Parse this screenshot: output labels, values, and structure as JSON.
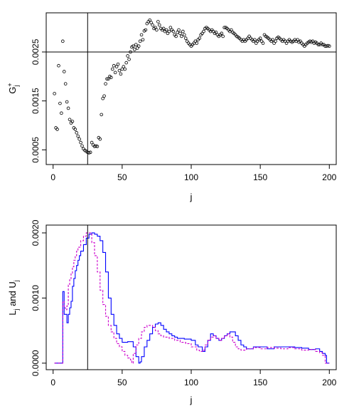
{
  "chart_data": [
    {
      "type": "scatter",
      "xlabel": "j",
      "ylabel": "G",
      "ylabel_sup": "+",
      "ylabel_sub": "j",
      "xlim": [
        -5,
        205
      ],
      "ylim": [
        0.0002,
        0.0033
      ],
      "xticks": [
        0,
        50,
        100,
        150,
        200
      ],
      "xtick_labels": [
        "0",
        "50",
        "100",
        "150",
        "200"
      ],
      "yticks": [
        0.0005,
        0.0015,
        0.0025
      ],
      "ytick_labels": [
        "0.0005",
        "0.0015",
        "0.0025"
      ],
      "vline_x": 25,
      "hline_y": 0.0025,
      "points": [
        [
          1,
          0.00165
        ],
        [
          2,
          0.00095
        ],
        [
          3,
          0.00092
        ],
        [
          4,
          0.00222
        ],
        [
          5,
          0.00145
        ],
        [
          6,
          0.00125
        ],
        [
          7,
          0.00272
        ],
        [
          8,
          0.0021
        ],
        [
          9,
          0.00185
        ],
        [
          10,
          0.00148
        ],
        [
          11,
          0.00135
        ],
        [
          12,
          0.00112
        ],
        [
          13,
          0.00105
        ],
        [
          14,
          0.00108
        ],
        [
          15,
          0.00095
        ],
        [
          16,
          0.00092
        ],
        [
          17,
          0.00085
        ],
        [
          18,
          0.00078
        ],
        [
          19,
          0.00072
        ],
        [
          20,
          0.00065
        ],
        [
          21,
          0.00058
        ],
        [
          22,
          0.00052
        ],
        [
          23,
          0.00049
        ],
        [
          24,
          0.00047
        ],
        [
          25,
          0.00045
        ],
        [
          26,
          0.00044
        ],
        [
          27,
          0.00045
        ],
        [
          28,
          0.00065
        ],
        [
          29,
          0.0006
        ],
        [
          30,
          0.00057
        ],
        [
          31,
          0.00058
        ],
        [
          32,
          0.00057
        ],
        [
          33,
          0.00075
        ],
        [
          34,
          0.00072
        ],
        [
          35,
          0.00122
        ],
        [
          36,
          0.00155
        ],
        [
          37,
          0.0016
        ],
        [
          38,
          0.00185
        ],
        [
          39,
          0.00195
        ],
        [
          40,
          0.00195
        ],
        [
          41,
          0.002
        ],
        [
          42,
          0.00198
        ],
        [
          43,
          0.00215
        ],
        [
          44,
          0.00222
        ],
        [
          45,
          0.00208
        ],
        [
          46,
          0.0022
        ],
        [
          47,
          0.00225
        ],
        [
          48,
          0.00212
        ],
        [
          49,
          0.00205
        ],
        [
          50,
          0.00215
        ],
        [
          51,
          0.0022
        ],
        [
          52,
          0.00215
        ],
        [
          53,
          0.00228
        ],
        [
          54,
          0.00242
        ],
        [
          55,
          0.00235
        ],
        [
          56,
          0.0025
        ],
        [
          57,
          0.0026
        ],
        [
          58,
          0.00262
        ],
        [
          59,
          0.00255
        ],
        [
          60,
          0.00265
        ],
        [
          61,
          0.00258
        ],
        [
          62,
          0.00262
        ],
        [
          63,
          0.00272
        ],
        [
          64,
          0.00285
        ],
        [
          65,
          0.00275
        ],
        [
          66,
          0.00293
        ],
        [
          67,
          0.00295
        ],
        [
          68,
          0.00308
        ],
        [
          69,
          0.00312
        ],
        [
          70,
          0.00315
        ],
        [
          71,
          0.0031
        ],
        [
          72,
          0.00305
        ],
        [
          73,
          0.00298
        ],
        [
          74,
          0.003
        ],
        [
          75,
          0.00295
        ],
        [
          76,
          0.00312
        ],
        [
          77,
          0.00305
        ],
        [
          78,
          0.00298
        ],
        [
          79,
          0.00295
        ],
        [
          80,
          0.00298
        ],
        [
          81,
          0.00292
        ],
        [
          82,
          0.00295
        ],
        [
          83,
          0.00288
        ],
        [
          84,
          0.00292
        ],
        [
          85,
          0.003
        ],
        [
          86,
          0.00295
        ],
        [
          87,
          0.00292
        ],
        [
          88,
          0.00285
        ],
        [
          89,
          0.00282
        ],
        [
          90,
          0.0029
        ],
        [
          91,
          0.00295
        ],
        [
          92,
          0.00288
        ],
        [
          93,
          0.00282
        ],
        [
          94,
          0.00292
        ],
        [
          95,
          0.00285
        ],
        [
          96,
          0.00278
        ],
        [
          97,
          0.00272
        ],
        [
          98,
          0.00268
        ],
        [
          99,
          0.00265
        ],
        [
          100,
          0.00262
        ],
        [
          101,
          0.00265
        ],
        [
          102,
          0.00268
        ],
        [
          103,
          0.00272
        ],
        [
          104,
          0.00268
        ],
        [
          105,
          0.00275
        ],
        [
          106,
          0.00278
        ],
        [
          107,
          0.00285
        ],
        [
          108,
          0.00288
        ],
        [
          109,
          0.00292
        ],
        [
          110,
          0.00298
        ],
        [
          111,
          0.003
        ],
        [
          112,
          0.00298
        ],
        [
          113,
          0.00295
        ],
        [
          114,
          0.00292
        ],
        [
          115,
          0.00295
        ],
        [
          116,
          0.00292
        ],
        [
          117,
          0.00288
        ],
        [
          118,
          0.0029
        ],
        [
          119,
          0.00285
        ],
        [
          120,
          0.00282
        ],
        [
          121,
          0.00285
        ],
        [
          122,
          0.00288
        ],
        [
          123,
          0.00282
        ],
        [
          124,
          0.003
        ],
        [
          125,
          0.003
        ],
        [
          126,
          0.00298
        ],
        [
          127,
          0.00295
        ],
        [
          128,
          0.00292
        ],
        [
          129,
          0.00295
        ],
        [
          130,
          0.0029
        ],
        [
          131,
          0.00288
        ],
        [
          132,
          0.00285
        ],
        [
          133,
          0.00282
        ],
        [
          134,
          0.0028
        ],
        [
          135,
          0.00278
        ],
        [
          136,
          0.00275
        ],
        [
          137,
          0.00272
        ],
        [
          138,
          0.00275
        ],
        [
          139,
          0.00272
        ],
        [
          140,
          0.00275
        ],
        [
          141,
          0.00278
        ],
        [
          142,
          0.00282
        ],
        [
          143,
          0.00278
        ],
        [
          144,
          0.00275
        ],
        [
          145,
          0.00272
        ],
        [
          146,
          0.00275
        ],
        [
          147,
          0.00268
        ],
        [
          148,
          0.00272
        ],
        [
          149,
          0.00275
        ],
        [
          150,
          0.00278
        ],
        [
          151,
          0.00272
        ],
        [
          152,
          0.00268
        ],
        [
          153,
          0.00285
        ],
        [
          154,
          0.00282
        ],
        [
          155,
          0.0028
        ],
        [
          156,
          0.00278
        ],
        [
          157,
          0.00275
        ],
        [
          158,
          0.00272
        ],
        [
          159,
          0.00275
        ],
        [
          160,
          0.00268
        ],
        [
          161,
          0.00272
        ],
        [
          162,
          0.00278
        ],
        [
          163,
          0.0028
        ],
        [
          164,
          0.00278
        ],
        [
          165,
          0.00275
        ],
        [
          166,
          0.00272
        ],
        [
          167,
          0.00275
        ],
        [
          168,
          0.00272
        ],
        [
          169,
          0.00268
        ],
        [
          170,
          0.00272
        ],
        [
          171,
          0.00275
        ],
        [
          172,
          0.00272
        ],
        [
          173,
          0.0027
        ],
        [
          174,
          0.00272
        ],
        [
          175,
          0.00275
        ],
        [
          176,
          0.00272
        ],
        [
          177,
          0.00275
        ],
        [
          178,
          0.0027
        ],
        [
          179,
          0.00272
        ],
        [
          180,
          0.00268
        ],
        [
          181,
          0.00265
        ],
        [
          182,
          0.00262
        ],
        [
          183,
          0.00265
        ],
        [
          184,
          0.00268
        ],
        [
          185,
          0.0027
        ],
        [
          186,
          0.00272
        ],
        [
          187,
          0.0027
        ],
        [
          188,
          0.00272
        ],
        [
          189,
          0.00268
        ],
        [
          190,
          0.0027
        ],
        [
          191,
          0.00268
        ],
        [
          192,
          0.00265
        ],
        [
          193,
          0.00265
        ],
        [
          194,
          0.00268
        ],
        [
          195,
          0.00265
        ],
        [
          196,
          0.00265
        ],
        [
          197,
          0.00262
        ],
        [
          198,
          0.00262
        ],
        [
          199,
          0.00263
        ],
        [
          200,
          0.00262
        ]
      ]
    },
    {
      "type": "line",
      "xlabel": "j",
      "ylabel": "L",
      "ylabel_sub_1": "j",
      "ylabel_mid": " and U",
      "ylabel_sub_2": "j",
      "xlim": [
        -5,
        205
      ],
      "ylim": [
        -0.0001,
        0.00212
      ],
      "xticks": [
        0,
        50,
        100,
        150,
        200
      ],
      "xtick_labels": [
        "0",
        "50",
        "100",
        "150",
        "200"
      ],
      "yticks": [
        0.0,
        0.001,
        0.002
      ],
      "ytick_labels": [
        "0.0000",
        "0.0010",
        "0.0020"
      ],
      "vline_x": 25,
      "series": [
        {
          "color": "#0000ff",
          "style": "step-solid",
          "x": [
            1,
            7,
            8,
            9,
            10,
            11,
            12,
            13,
            14,
            15,
            16,
            17,
            18,
            19,
            20,
            22,
            24,
            26,
            28,
            30,
            32,
            34,
            36,
            38,
            40,
            42,
            44,
            46,
            48,
            50,
            52,
            54,
            56,
            58,
            60,
            62,
            63,
            64,
            66,
            68,
            70,
            72,
            74,
            76,
            78,
            80,
            82,
            84,
            86,
            88,
            90,
            95,
            100,
            103,
            105,
            108,
            110,
            112,
            114,
            116,
            118,
            120,
            122,
            124,
            126,
            128,
            130,
            132,
            134,
            136,
            138,
            140,
            142,
            145,
            150,
            155,
            160,
            165,
            170,
            175,
            180,
            185,
            190,
            193,
            195,
            197,
            198,
            200
          ],
          "y": [
            0.0,
            0.0011,
            0.00075,
            0.00075,
            0.00062,
            0.00075,
            0.00085,
            0.00095,
            0.00118,
            0.0013,
            0.00142,
            0.0015,
            0.00158,
            0.00165,
            0.00172,
            0.00182,
            0.00192,
            0.00198,
            0.002,
            0.00198,
            0.00195,
            0.00188,
            0.0017,
            0.0014,
            0.001,
            0.00075,
            0.00058,
            0.00045,
            0.00038,
            0.00032,
            0.00032,
            0.00033,
            0.00033,
            0.00025,
            0.0001,
            0.0,
            2e-05,
            0.0001,
            0.00025,
            0.00035,
            0.00045,
            0.00055,
            0.0006,
            0.00062,
            0.00058,
            0.00052,
            0.00048,
            0.00045,
            0.00042,
            0.0004,
            0.00038,
            0.00037,
            0.00035,
            0.00028,
            0.00025,
            0.00018,
            0.00025,
            0.00035,
            0.00045,
            0.00042,
            0.00038,
            0.00035,
            0.00038,
            0.00042,
            0.00045,
            0.00048,
            0.00048,
            0.00042,
            0.00035,
            0.00028,
            0.00025,
            0.00022,
            0.00022,
            0.00025,
            0.00025,
            0.00022,
            0.00025,
            0.00025,
            0.00025,
            0.00024,
            0.00023,
            0.00021,
            0.00022,
            0.00018,
            0.00015,
            0.00012,
            0.0,
            0.0
          ]
        },
        {
          "color": "#cc00cc",
          "style": "step-dashed",
          "x": [
            1,
            7,
            8,
            9,
            10,
            11,
            12,
            13,
            14,
            15,
            16,
            17,
            18,
            20,
            22,
            24,
            26,
            28,
            30,
            32,
            34,
            36,
            38,
            40,
            42,
            44,
            46,
            48,
            50,
            52,
            54,
            56,
            57,
            58,
            60,
            62,
            64,
            66,
            68,
            70,
            72,
            74,
            76,
            78,
            80,
            84,
            88,
            92,
            96,
            100,
            104,
            106,
            108,
            110,
            112,
            114,
            116,
            118,
            120,
            122,
            124,
            126,
            128,
            130,
            132,
            134,
            136,
            138,
            140,
            145,
            150,
            155,
            160,
            165,
            170,
            175,
            180,
            185,
            190,
            193,
            195,
            197,
            198,
            200
          ],
          "y": [
            0.0,
            0.00095,
            0.00085,
            0.00082,
            0.00088,
            0.0012,
            0.00128,
            0.00138,
            0.00148,
            0.00158,
            0.00165,
            0.00172,
            0.00178,
            0.00188,
            0.00195,
            0.002,
            0.002,
            0.00185,
            0.00165,
            0.0014,
            0.00112,
            0.0009,
            0.00072,
            0.00058,
            0.00048,
            0.00038,
            0.0003,
            0.00025,
            0.00018,
            0.00012,
            8e-05,
            5e-05,
            0.0,
            0.00015,
            0.00028,
            0.00038,
            0.00048,
            0.00055,
            0.00058,
            0.00058,
            0.00055,
            0.0005,
            0.00045,
            0.00042,
            0.0004,
            0.00038,
            0.00035,
            0.00032,
            0.0003,
            0.00025,
            0.0002,
            0.00018,
            0.0002,
            0.00028,
            0.00035,
            0.0004,
            0.00042,
            0.00038,
            0.00035,
            0.00038,
            0.00042,
            0.00045,
            0.0004,
            0.00032,
            0.00025,
            0.00022,
            0.0002,
            0.0002,
            0.00022,
            0.00024,
            0.00022,
            0.00024,
            0.00023,
            0.00022,
            0.00024,
            0.00022,
            0.0002,
            0.00021,
            0.00018,
            0.00016,
            0.00012,
            0.0,
            0.0,
            0.0
          ]
        }
      ]
    }
  ]
}
